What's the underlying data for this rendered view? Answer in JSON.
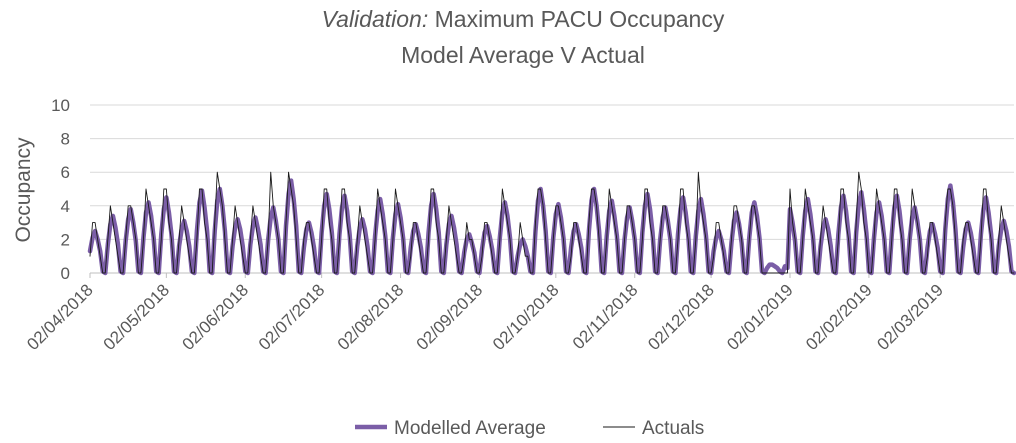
{
  "chart_data": {
    "type": "line",
    "title_italic": "Validation:",
    "title": "Maximum PACU Occupancy",
    "subtitle": "Model Average V Actual",
    "y_label": "Occupancy",
    "ylim": [
      0,
      10
    ],
    "yticks": [
      0,
      2,
      4,
      6,
      8,
      10
    ],
    "grid": true,
    "legend": "bottom",
    "xlim": [
      "2018-04-02",
      "2019-03-31"
    ],
    "xticks": [
      {
        "value": "2018-04-02",
        "label": "02/04/2018"
      },
      {
        "value": "2018-05-02",
        "label": "02/05/2018"
      },
      {
        "value": "2018-06-02",
        "label": "02/06/2018"
      },
      {
        "value": "2018-07-02",
        "label": "02/07/2018"
      },
      {
        "value": "2018-08-02",
        "label": "02/08/2018"
      },
      {
        "value": "2018-09-02",
        "label": "02/09/2018"
      },
      {
        "value": "2018-10-02",
        "label": "02/10/2018"
      },
      {
        "value": "2018-11-02",
        "label": "02/11/2018"
      },
      {
        "value": "2018-12-02",
        "label": "02/12/2018"
      },
      {
        "value": "2019-01-02",
        "label": "02/01/2019"
      },
      {
        "value": "2019-02-02",
        "label": "02/02/2019"
      },
      {
        "value": "2019-03-02",
        "label": "02/03/2019"
      }
    ],
    "x": [
      "2018-04-02",
      "2018-04-03",
      "2018-04-04",
      "2018-04-05",
      "2018-04-06",
      "2018-04-07",
      "2018-04-08",
      "2018-04-09",
      "2018-04-10",
      "2018-04-11",
      "2018-04-12",
      "2018-04-13",
      "2018-04-14",
      "2018-04-15",
      "2018-04-16",
      "2018-04-17",
      "2018-04-18",
      "2018-04-19",
      "2018-04-20",
      "2018-04-21",
      "2018-04-22",
      "2018-04-23",
      "2018-04-24",
      "2018-04-25",
      "2018-04-26",
      "2018-04-27",
      "2018-04-28",
      "2018-04-29",
      "2018-04-30",
      "2018-05-01",
      "2018-05-02",
      "2018-05-03",
      "2018-05-04",
      "2018-05-05",
      "2018-05-06",
      "2018-05-07",
      "2018-05-08",
      "2018-05-09",
      "2018-05-10",
      "2018-05-11",
      "2018-05-12",
      "2018-05-13",
      "2018-05-14",
      "2018-05-15",
      "2018-05-16",
      "2018-05-17",
      "2018-05-18",
      "2018-05-19",
      "2018-05-20",
      "2018-05-21",
      "2018-05-22",
      "2018-05-23",
      "2018-05-24",
      "2018-05-25",
      "2018-05-26",
      "2018-05-27",
      "2018-05-28",
      "2018-05-29",
      "2018-05-30",
      "2018-05-31",
      "2018-06-01",
      "2018-06-02",
      "2018-06-03",
      "2018-06-04",
      "2018-06-05",
      "2018-06-06",
      "2018-06-07",
      "2018-06-08",
      "2018-06-09",
      "2018-06-10",
      "2018-06-11",
      "2018-06-12",
      "2018-06-13",
      "2018-06-14",
      "2018-06-15",
      "2018-06-16",
      "2018-06-17",
      "2018-06-18",
      "2018-06-19",
      "2018-06-20",
      "2018-06-21",
      "2018-06-22",
      "2018-06-23",
      "2018-06-24",
      "2018-06-25",
      "2018-06-26",
      "2018-06-27",
      "2018-06-28",
      "2018-06-29",
      "2018-06-30",
      "2018-07-01",
      "2018-07-02",
      "2018-07-03",
      "2018-07-04",
      "2018-07-05",
      "2018-07-06",
      "2018-07-07",
      "2018-07-08",
      "2018-07-09",
      "2018-07-10",
      "2018-07-11",
      "2018-07-12",
      "2018-07-13",
      "2018-07-14",
      "2018-07-15",
      "2018-07-16",
      "2018-07-17",
      "2018-07-18",
      "2018-07-19",
      "2018-07-20",
      "2018-07-21",
      "2018-07-22",
      "2018-07-23",
      "2018-07-24",
      "2018-07-25",
      "2018-07-26",
      "2018-07-27",
      "2018-07-28",
      "2018-07-29",
      "2018-07-30",
      "2018-07-31",
      "2018-08-01",
      "2018-08-02",
      "2018-08-03",
      "2018-08-04",
      "2018-08-05",
      "2018-08-06",
      "2018-08-07",
      "2018-08-08",
      "2018-08-09",
      "2018-08-10",
      "2018-08-11",
      "2018-08-12",
      "2018-08-13",
      "2018-08-14",
      "2018-08-15",
      "2018-08-16",
      "2018-08-17",
      "2018-08-18",
      "2018-08-19",
      "2018-08-20",
      "2018-08-21",
      "2018-08-22",
      "2018-08-23",
      "2018-08-24",
      "2018-08-25",
      "2018-08-26",
      "2018-08-27",
      "2018-08-28",
      "2018-08-29",
      "2018-08-30",
      "2018-08-31",
      "2018-09-01",
      "2018-09-02",
      "2018-09-03",
      "2018-09-04",
      "2018-09-05",
      "2018-09-06",
      "2018-09-07",
      "2018-09-08",
      "2018-09-09",
      "2018-09-10",
      "2018-09-11",
      "2018-09-12",
      "2018-09-13",
      "2018-09-14",
      "2018-09-15",
      "2018-09-16",
      "2018-09-17",
      "2018-09-18",
      "2018-09-19",
      "2018-09-20",
      "2018-09-21",
      "2018-09-22",
      "2018-09-23",
      "2018-09-24",
      "2018-09-25",
      "2018-09-26",
      "2018-09-27",
      "2018-09-28",
      "2018-09-29",
      "2018-09-30",
      "2018-10-01",
      "2018-10-02",
      "2018-10-03",
      "2018-10-04",
      "2018-10-05",
      "2018-10-06",
      "2018-10-07",
      "2018-10-08",
      "2018-10-09",
      "2018-10-10",
      "2018-10-11",
      "2018-10-12",
      "2018-10-13",
      "2018-10-14",
      "2018-10-15",
      "2018-10-16",
      "2018-10-17",
      "2018-10-18",
      "2018-10-19",
      "2018-10-20",
      "2018-10-21",
      "2018-10-22",
      "2018-10-23",
      "2018-10-24",
      "2018-10-25",
      "2018-10-26",
      "2018-10-27",
      "2018-10-28",
      "2018-10-29",
      "2018-10-30",
      "2018-10-31",
      "2018-11-01",
      "2018-11-02",
      "2018-11-03",
      "2018-11-04",
      "2018-11-05",
      "2018-11-06",
      "2018-11-07",
      "2018-11-08",
      "2018-11-09",
      "2018-11-10",
      "2018-11-11",
      "2018-11-12",
      "2018-11-13",
      "2018-11-14",
      "2018-11-15",
      "2018-11-16",
      "2018-11-17",
      "2018-11-18",
      "2018-11-19",
      "2018-11-20",
      "2018-11-21",
      "2018-11-22",
      "2018-11-23",
      "2018-11-24",
      "2018-11-25",
      "2018-11-26",
      "2018-11-27",
      "2018-11-28",
      "2018-11-29",
      "2018-11-30",
      "2018-12-01",
      "2018-12-02",
      "2018-12-03",
      "2018-12-04",
      "2018-12-05",
      "2018-12-06",
      "2018-12-07",
      "2018-12-08",
      "2018-12-09",
      "2018-12-10",
      "2018-12-11",
      "2018-12-12",
      "2018-12-13",
      "2018-12-14",
      "2018-12-15",
      "2018-12-16",
      "2018-12-17",
      "2018-12-18",
      "2018-12-19",
      "2018-12-20",
      "2018-12-21",
      "2018-12-22",
      "2018-12-23",
      "2018-12-24",
      "2018-12-25",
      "2018-12-26",
      "2018-12-27",
      "2018-12-28",
      "2018-12-29",
      "2018-12-30",
      "2018-12-31",
      "2019-01-01",
      "2019-01-02",
      "2019-01-03",
      "2019-01-04",
      "2019-01-05",
      "2019-01-06",
      "2019-01-07",
      "2019-01-08",
      "2019-01-09",
      "2019-01-10",
      "2019-01-11",
      "2019-01-12",
      "2019-01-13",
      "2019-01-14",
      "2019-01-15",
      "2019-01-16",
      "2019-01-17",
      "2019-01-18",
      "2019-01-19",
      "2019-01-20",
      "2019-01-21",
      "2019-01-22",
      "2019-01-23",
      "2019-01-24",
      "2019-01-25",
      "2019-01-26",
      "2019-01-27",
      "2019-01-28",
      "2019-01-29",
      "2019-01-30",
      "2019-01-31",
      "2019-02-01",
      "2019-02-02",
      "2019-02-03",
      "2019-02-04",
      "2019-02-05",
      "2019-02-06",
      "2019-02-07",
      "2019-02-08",
      "2019-02-09",
      "2019-02-10",
      "2019-02-11",
      "2019-02-12",
      "2019-02-13",
      "2019-02-14",
      "2019-02-15",
      "2019-02-16",
      "2019-02-17",
      "2019-02-18",
      "2019-02-19",
      "2019-02-20",
      "2019-02-21",
      "2019-02-22",
      "2019-02-23",
      "2019-02-24",
      "2019-02-25",
      "2019-02-26",
      "2019-02-27",
      "2019-02-28",
      "2019-03-01",
      "2019-03-02",
      "2019-03-03",
      "2019-03-04",
      "2019-03-05",
      "2019-03-06",
      "2019-03-07",
      "2019-03-08",
      "2019-03-09",
      "2019-03-10",
      "2019-03-11",
      "2019-03-12",
      "2019-03-13",
      "2019-03-14",
      "2019-03-15",
      "2019-03-16",
      "2019-03-17",
      "2019-03-18",
      "2019-03-19",
      "2019-03-20",
      "2019-03-21",
      "2019-03-22",
      "2019-03-23",
      "2019-03-24",
      "2019-03-25",
      "2019-03-26",
      "2019-03-27",
      "2019-03-28",
      "2019-03-29",
      "2019-03-30",
      "2019-03-31"
    ],
    "series": [
      {
        "name": "Modelled Average",
        "color": "#7b5ea7",
        "width": 4.5,
        "values": [
          1.3,
          2.1,
          2.5,
          2.0,
          1.3,
          0.1,
          0,
          1.7,
          2.9,
          3.4,
          2.7,
          1.7,
          0.1,
          0,
          1.9,
          3.2,
          3.8,
          3.0,
          1.9,
          0.1,
          0,
          2.1,
          3.6,
          4.2,
          3.4,
          2.1,
          0.1,
          0,
          2.3,
          3.8,
          4.5,
          3.6,
          2.3,
          0.1,
          0,
          1.6,
          2.6,
          3.1,
          2.5,
          1.6,
          0.1,
          0,
          2.5,
          4.2,
          4.9,
          3.9,
          2.5,
          0.1,
          0,
          2.5,
          4.3,
          5.0,
          4.0,
          2.5,
          0.1,
          0,
          1.6,
          2.7,
          3.2,
          2.6,
          1.6,
          0.1,
          0,
          1.7,
          2.8,
          3.3,
          2.6,
          1.7,
          0.1,
          0,
          2.0,
          3.3,
          3.9,
          3.1,
          2.0,
          0.1,
          0,
          2.8,
          4.7,
          5.5,
          4.4,
          2.8,
          0.1,
          0,
          1.5,
          2.6,
          3.0,
          2.4,
          1.5,
          0.1,
          0,
          2.4,
          4.0,
          4.7,
          3.8,
          2.4,
          0.1,
          0,
          2.3,
          3.9,
          4.6,
          3.7,
          2.3,
          0.1,
          0,
          1.6,
          2.7,
          3.2,
          2.6,
          1.6,
          0.1,
          0,
          2.2,
          3.7,
          4.4,
          3.5,
          2.2,
          0.1,
          0,
          2.1,
          3.5,
          4.1,
          3.3,
          2.1,
          0.1,
          0,
          1.5,
          2.5,
          2.9,
          2.3,
          1.5,
          0.1,
          0,
          2.4,
          4.0,
          4.7,
          3.8,
          2.4,
          0.1,
          0,
          1.7,
          2.9,
          3.4,
          2.7,
          1.7,
          0.1,
          0,
          1.2,
          2.0,
          2.3,
          1.8,
          1.2,
          0.1,
          0,
          1.4,
          2.4,
          2.8,
          2.2,
          1.4,
          0.1,
          0,
          2.1,
          3.6,
          4.2,
          3.4,
          2.1,
          0.1,
          0,
          1.0,
          1.7,
          2.0,
          1.6,
          1.0,
          0.1,
          0,
          2.5,
          4.3,
          5.0,
          4.0,
          2.5,
          0.1,
          0,
          2.1,
          3.5,
          4.1,
          3.3,
          2.1,
          0.1,
          0,
          1.5,
          2.5,
          2.9,
          2.3,
          1.5,
          0.1,
          0,
          2.5,
          4.3,
          5.0,
          4.0,
          2.5,
          0.1,
          0,
          2.2,
          3.7,
          4.3,
          3.4,
          2.2,
          0.1,
          0,
          2.0,
          3.3,
          3.9,
          3.1,
          2.0,
          0.1,
          0,
          2.4,
          4.0,
          4.7,
          3.8,
          2.4,
          0.1,
          0,
          2.0,
          3.3,
          3.9,
          3.1,
          2.0,
          0.1,
          0,
          2.3,
          3.8,
          4.5,
          3.6,
          2.3,
          0.1,
          0,
          2.2,
          3.7,
          4.4,
          3.5,
          2.2,
          0.1,
          0,
          1.3,
          2.1,
          2.5,
          2.0,
          1.3,
          0.1,
          0,
          1.8,
          3.1,
          3.6,
          2.9,
          1.8,
          0.1,
          0,
          2.1,
          3.6,
          4.2,
          3.4,
          2.1,
          0.1,
          0,
          0.3,
          0.5,
          0.5,
          0.4,
          0.3,
          0.1,
          0,
          0.4,
          0.3,
          3.8,
          3.0,
          1.9,
          0.1,
          0,
          2.2,
          3.7,
          4.4,
          3.5,
          2.2,
          0.1,
          0,
          1.6,
          2.7,
          3.2,
          2.6,
          1.6,
          0.1,
          0,
          2.3,
          3.9,
          4.6,
          3.7,
          2.3,
          0.1,
          0,
          2.4,
          4.1,
          4.8,
          3.8,
          2.4,
          0.1,
          0,
          2.1,
          3.6,
          4.2,
          3.4,
          2.1,
          0.1,
          0,
          2.3,
          3.9,
          4.6,
          3.7,
          2.3,
          0.1,
          0,
          2.0,
          3.3,
          3.9,
          3.1,
          2.0,
          0.1,
          0,
          1.5,
          2.5,
          2.9,
          2.3,
          1.5,
          0.1,
          0,
          2.6,
          4.4,
          5.2,
          4.2,
          2.6,
          0.1,
          0,
          1.5,
          2.6,
          3.0,
          2.4,
          1.5,
          0.1,
          0,
          2.3,
          3.8,
          4.5,
          3.6,
          2.3,
          0.1,
          0,
          1.6,
          2.6,
          3.1,
          2.5,
          1.6,
          0.1,
          0
        ]
      },
      {
        "name": "Actuals",
        "color": "#1a1a1a",
        "width": 0.9,
        "values": [
          1,
          3,
          3,
          2,
          1,
          0,
          0,
          2,
          4,
          3,
          2,
          1,
          0,
          0,
          2,
          4,
          4,
          3,
          2,
          0,
          0,
          2,
          5,
          4,
          3,
          2,
          0,
          0,
          2,
          5,
          5,
          3,
          2,
          0,
          0,
          2,
          4,
          3,
          2,
          1,
          0,
          0,
          2,
          5,
          5,
          3,
          2,
          0,
          0,
          3,
          6,
          5,
          4,
          2,
          0,
          0,
          2,
          4,
          3,
          2,
          1,
          0,
          0,
          2,
          4,
          3,
          2,
          1,
          0,
          0,
          2,
          6,
          4,
          3,
          2,
          0,
          0,
          3,
          6,
          5,
          4,
          2,
          0,
          0,
          2,
          3,
          3,
          2,
          1,
          0,
          0,
          2,
          5,
          5,
          3,
          2,
          0,
          0,
          2,
          5,
          5,
          3,
          2,
          0,
          0,
          2,
          4,
          3,
          2,
          1,
          0,
          0,
          2,
          5,
          4,
          3,
          2,
          0,
          0,
          2,
          5,
          4,
          3,
          2,
          0,
          0,
          1,
          3,
          3,
          2,
          1,
          0,
          0,
          2,
          5,
          5,
          3,
          2,
          0,
          0,
          2,
          4,
          3,
          2,
          1,
          0,
          0,
          1,
          3,
          2,
          2,
          1,
          0,
          0,
          1,
          3,
          3,
          2,
          1,
          0,
          0,
          2,
          5,
          4,
          3,
          2,
          0,
          0,
          1,
          3,
          2,
          1,
          1,
          0,
          0,
          3,
          5,
          5,
          4,
          2,
          0,
          0,
          2,
          4,
          4,
          3,
          2,
          0,
          0,
          1,
          3,
          3,
          2,
          1,
          0,
          0,
          3,
          5,
          5,
          4,
          2,
          0,
          0,
          2,
          5,
          4,
          3,
          2,
          0,
          0,
          2,
          4,
          4,
          3,
          2,
          0,
          0,
          2,
          5,
          5,
          3,
          2,
          0,
          0,
          2,
          4,
          4,
          3,
          2,
          0,
          0,
          2,
          5,
          5,
          3,
          2,
          0,
          0,
          2,
          6,
          4,
          3,
          2,
          0,
          0,
          1,
          3,
          3,
          2,
          1,
          0,
          0,
          2,
          4,
          4,
          3,
          2,
          0,
          0,
          2,
          4,
          4,
          3,
          2,
          0,
          0,
          0,
          0,
          0,
          0,
          0,
          0,
          0,
          0,
          0,
          5,
          3,
          2,
          0,
          0,
          2,
          5,
          4,
          3,
          2,
          0,
          0,
          2,
          4,
          3,
          2,
          1,
          0,
          0,
          2,
          5,
          5,
          3,
          2,
          0,
          0,
          3,
          6,
          5,
          3,
          2,
          0,
          0,
          2,
          5,
          4,
          3,
          2,
          0,
          0,
          2,
          5,
          5,
          3,
          2,
          0,
          0,
          2,
          5,
          4,
          3,
          2,
          0,
          0,
          1,
          3,
          3,
          2,
          1,
          0,
          0,
          3,
          5,
          5,
          4,
          2,
          0,
          0,
          2,
          3,
          3,
          2,
          1,
          0,
          0,
          2,
          5,
          5,
          3,
          2,
          0,
          0,
          2,
          4,
          3,
          2,
          1,
          0,
          0
        ]
      }
    ]
  }
}
